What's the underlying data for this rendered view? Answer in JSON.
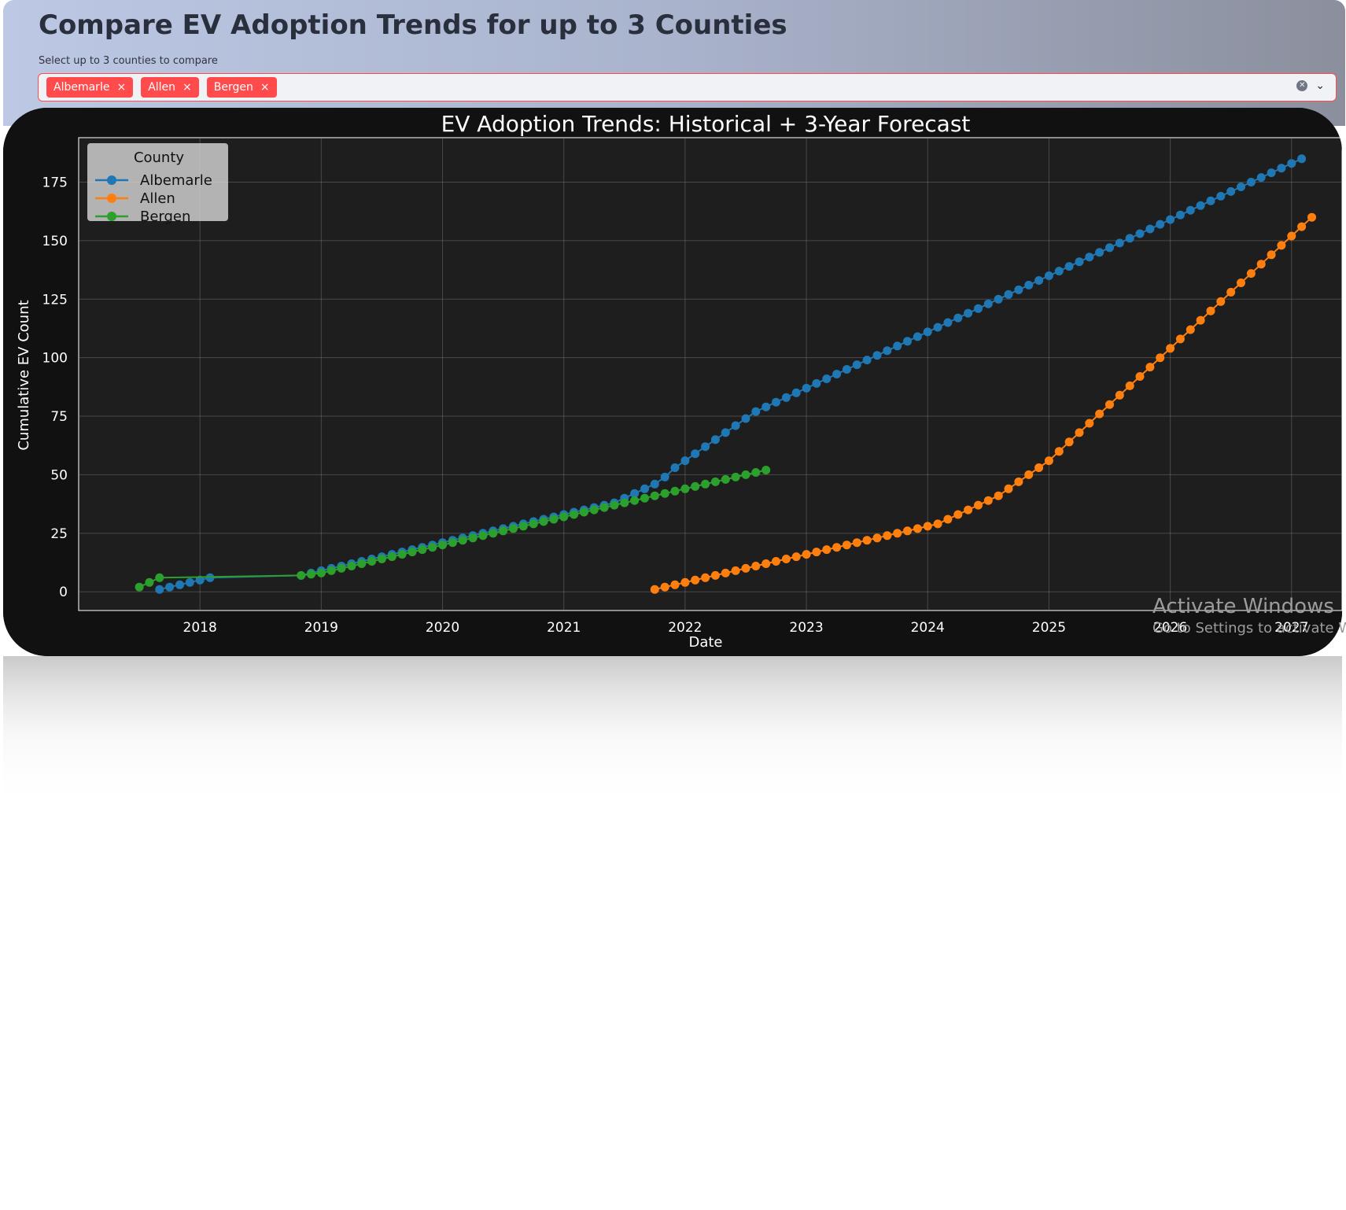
{
  "page": {
    "title": "Compare EV Adoption Trends for up to 3 Counties",
    "select_label": "Select up to 3 counties to compare",
    "selected_counties": [
      "Albemarle",
      "Allen",
      "Bergen"
    ],
    "chip_remove_glyph": "×",
    "clear_glyph": "✕",
    "chevron_glyph": "⌄"
  },
  "watermark": {
    "title": "Activate Windows",
    "subtitle": "Go to Settings to activate Windows."
  },
  "chart_data": {
    "type": "line",
    "title": "EV Adoption Trends: Historical + 3-Year Forecast",
    "xlabel": "Date",
    "ylabel": "Cumulative EV Count",
    "x_ticks": [
      "2018",
      "2019",
      "2020",
      "2021",
      "2022",
      "2023",
      "2024",
      "2025",
      "2026",
      "2027"
    ],
    "y_ticks": [
      0,
      25,
      50,
      75,
      100,
      125,
      150,
      175
    ],
    "xlim": [
      "2017-01",
      "2027-06"
    ],
    "ylim": [
      -8,
      194
    ],
    "grid": true,
    "legend_title": "County",
    "legend_position": "top-left",
    "background": "#1e1e1e",
    "series": [
      {
        "name": "Albemarle",
        "color": "#1f77b4",
        "segments": [
          {
            "start": "2017-09",
            "values": [
              1,
              2,
              3,
              4,
              5,
              6
            ]
          },
          {
            "start": "2018-11",
            "values": [
              7,
              8,
              9,
              10,
              11,
              12,
              13,
              14,
              15,
              16,
              17,
              18,
              19,
              20,
              21,
              22,
              23,
              24,
              25,
              26,
              27,
              28,
              29,
              30,
              31,
              32,
              33,
              34,
              35,
              36,
              37,
              38,
              40,
              42,
              44,
              46,
              49,
              53,
              56,
              59,
              62,
              65,
              68,
              71,
              74,
              77,
              79,
              81,
              83,
              85,
              87,
              89,
              91,
              93,
              95,
              97,
              99,
              101,
              103,
              105,
              107,
              109,
              111,
              113,
              115,
              117,
              119,
              121,
              123,
              125,
              127,
              129,
              131,
              133,
              135,
              137,
              139,
              141,
              143,
              145,
              147,
              149,
              151,
              153,
              155,
              157,
              159,
              161,
              163,
              165,
              167,
              169,
              171,
              173,
              175,
              177,
              179,
              181,
              183,
              185
            ]
          }
        ]
      },
      {
        "name": "Allen",
        "color": "#ff7f0e",
        "segments": [
          {
            "start": "2021-10",
            "values": [
              1,
              2,
              3,
              4,
              5,
              6,
              7,
              8,
              9,
              10,
              11,
              12,
              13,
              14,
              15,
              16,
              17,
              18,
              19,
              20,
              21,
              22,
              23,
              24,
              25,
              26,
              27,
              28,
              29,
              31,
              33,
              35,
              37,
              39,
              41,
              44,
              47,
              50,
              53,
              56,
              60,
              64,
              68,
              72,
              76,
              80,
              84,
              88,
              92,
              96,
              100,
              104,
              108,
              112,
              116,
              120,
              124,
              128,
              132,
              136,
              140,
              144,
              148,
              152,
              156,
              160
            ]
          }
        ]
      },
      {
        "name": "Bergen",
        "color": "#2ca02c",
        "segments": [
          {
            "start": "2017-07",
            "values": [
              2,
              4,
              6
            ]
          },
          {
            "start": "2018-11",
            "values": [
              7,
              7.5,
              8,
              9,
              10,
              11,
              12,
              13,
              14,
              15,
              16,
              17,
              18,
              19,
              20,
              21,
              22,
              23,
              24,
              25,
              26,
              27,
              28,
              29,
              30,
              31,
              32,
              33,
              34,
              35,
              36,
              37,
              38,
              39,
              40,
              41,
              42,
              43,
              44,
              45,
              46,
              47,
              48,
              49,
              50,
              51,
              52
            ]
          }
        ]
      }
    ]
  }
}
